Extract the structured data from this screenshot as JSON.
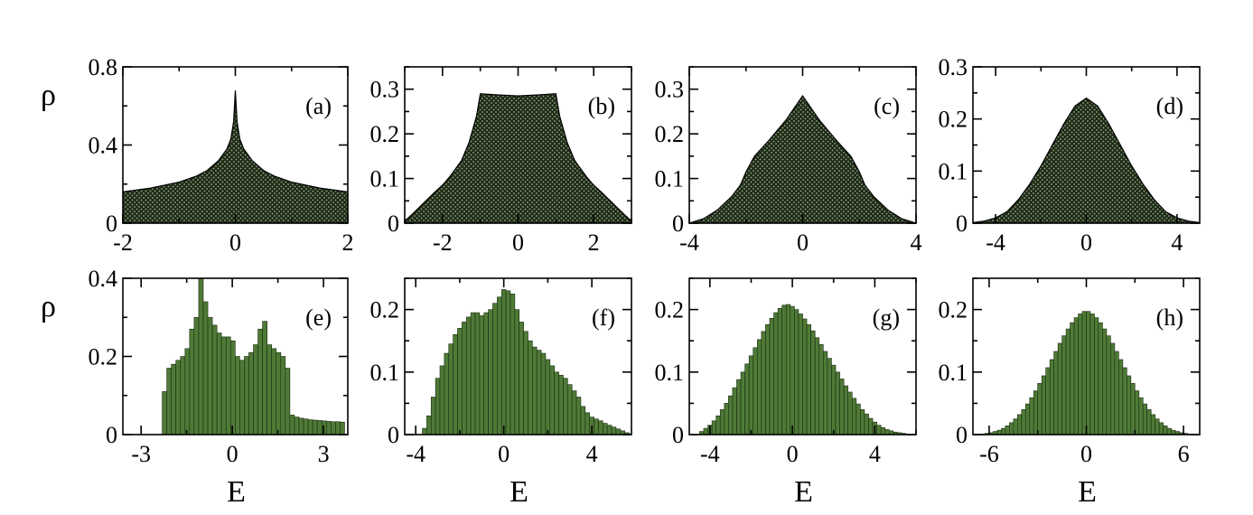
{
  "figure": {
    "colors": {
      "dark_fill": "#1e2c16",
      "dot": "#9aa890",
      "hist_fill": "#4e7a36",
      "hist_edge": "#1a2a10"
    }
  },
  "chart_data": [
    {
      "id": "a",
      "type": "area",
      "panel_label": "(a)",
      "ylabel": "ρ",
      "xlabel": "",
      "xlim": [
        -2,
        2
      ],
      "ylim": [
        0,
        0.8
      ],
      "xticks": [
        -2,
        0,
        2
      ],
      "xtick_labels": [
        "-2",
        "0",
        "2"
      ],
      "yticks": [
        0,
        0.4,
        0.8
      ],
      "ytick_labels": [
        "0",
        "0.4",
        "0.8"
      ],
      "x": [
        -2,
        -1.5,
        -1,
        -0.7,
        -0.5,
        -0.3,
        -0.15,
        -0.08,
        -0.03,
        0,
        0.03,
        0.08,
        0.15,
        0.3,
        0.5,
        0.7,
        1,
        1.5,
        2
      ],
      "y": [
        0.16,
        0.18,
        0.21,
        0.24,
        0.27,
        0.32,
        0.38,
        0.43,
        0.52,
        0.68,
        0.52,
        0.43,
        0.38,
        0.32,
        0.27,
        0.24,
        0.21,
        0.18,
        0.16
      ]
    },
    {
      "id": "b",
      "type": "area",
      "panel_label": "(b)",
      "ylabel": "",
      "xlabel": "",
      "xlim": [
        -3,
        3
      ],
      "ylim": [
        0,
        0.35
      ],
      "xticks": [
        -2,
        0,
        2
      ],
      "xtick_labels": [
        "-2",
        "0",
        "2"
      ],
      "yticks": [
        0,
        0.1,
        0.2,
        0.3
      ],
      "ytick_labels": [
        "0",
        "0.1",
        "0.2",
        "0.3"
      ],
      "x": [
        -3,
        -2.8,
        -2.5,
        -2.2,
        -2,
        -1.8,
        -1.5,
        -1.3,
        -1.1,
        -1,
        -0.5,
        0,
        0.5,
        1,
        1.1,
        1.3,
        1.5,
        1.8,
        2,
        2.2,
        2.5,
        2.8,
        3
      ],
      "y": [
        0.005,
        0.02,
        0.045,
        0.07,
        0.085,
        0.105,
        0.14,
        0.18,
        0.24,
        0.29,
        0.287,
        0.285,
        0.287,
        0.29,
        0.24,
        0.18,
        0.14,
        0.105,
        0.085,
        0.07,
        0.045,
        0.02,
        0.005
      ]
    },
    {
      "id": "c",
      "type": "area",
      "panel_label": "(c)",
      "ylabel": "",
      "xlabel": "",
      "xlim": [
        -4,
        4
      ],
      "ylim": [
        0,
        0.35
      ],
      "xticks": [
        -4,
        0,
        4
      ],
      "xtick_labels": [
        "-4",
        "0",
        "4"
      ],
      "yticks": [
        0,
        0.1,
        0.2,
        0.3
      ],
      "ytick_labels": [
        "0",
        "0.1",
        "0.2",
        "0.3"
      ],
      "x": [
        -4,
        -3.5,
        -3,
        -2.5,
        -2.2,
        -2,
        -1.7,
        -1.2,
        -0.6,
        0,
        0.6,
        1.2,
        1.7,
        2,
        2.2,
        2.5,
        3,
        3.5,
        4
      ],
      "y": [
        0,
        0.01,
        0.03,
        0.06,
        0.085,
        0.115,
        0.15,
        0.185,
        0.23,
        0.285,
        0.23,
        0.185,
        0.15,
        0.115,
        0.085,
        0.06,
        0.03,
        0.01,
        0
      ]
    },
    {
      "id": "d",
      "type": "area",
      "panel_label": "(d)",
      "ylabel": "",
      "xlabel": "",
      "xlim": [
        -5,
        5
      ],
      "ylim": [
        0,
        0.3
      ],
      "xticks": [
        -4,
        0,
        4
      ],
      "xtick_labels": [
        "-4",
        "0",
        "4"
      ],
      "yticks": [
        0,
        0.1,
        0.2,
        0.3
      ],
      "ytick_labels": [
        "0",
        "0.1",
        "0.2",
        "0.3"
      ],
      "x": [
        -5,
        -4.5,
        -4,
        -3.5,
        -3,
        -2.5,
        -2,
        -1.5,
        -1,
        -0.5,
        0,
        0.5,
        1,
        1.5,
        2,
        2.5,
        3,
        3.5,
        4,
        4.5,
        5
      ],
      "y": [
        0.001,
        0.004,
        0.01,
        0.022,
        0.045,
        0.075,
        0.11,
        0.15,
        0.19,
        0.225,
        0.24,
        0.225,
        0.19,
        0.15,
        0.11,
        0.075,
        0.045,
        0.022,
        0.01,
        0.004,
        0.001
      ]
    },
    {
      "id": "e",
      "type": "bar",
      "panel_label": "(e)",
      "ylabel": "ρ",
      "xlabel": "E",
      "xlim": [
        -3.6,
        3.8
      ],
      "ylim": [
        0,
        0.4
      ],
      "xticks": [
        -3,
        0,
        3
      ],
      "xtick_labels": [
        "-3",
        "0",
        "3"
      ],
      "yticks": [
        0,
        0.2,
        0.4
      ],
      "ytick_labels": [
        "0",
        "0.2",
        "0.4"
      ],
      "bin_width": 0.15,
      "x": [
        -2.23,
        -2.08,
        -1.93,
        -1.78,
        -1.63,
        -1.48,
        -1.33,
        -1.18,
        -1.03,
        -0.88,
        -0.73,
        -0.58,
        -0.43,
        -0.28,
        -0.13,
        0.02,
        0.17,
        0.32,
        0.47,
        0.62,
        0.77,
        0.92,
        1.07,
        1.22,
        1.37,
        1.52,
        1.67,
        1.82,
        1.97,
        2.12,
        2.27,
        2.42,
        2.57,
        2.72,
        2.87,
        3.02,
        3.17,
        3.32,
        3.47,
        3.62
      ],
      "y": [
        0.11,
        0.17,
        0.18,
        0.19,
        0.2,
        0.22,
        0.27,
        0.3,
        0.4,
        0.34,
        0.3,
        0.28,
        0.26,
        0.25,
        0.25,
        0.24,
        0.2,
        0.19,
        0.2,
        0.21,
        0.23,
        0.27,
        0.29,
        0.23,
        0.22,
        0.21,
        0.2,
        0.17,
        0.05,
        0.045,
        0.042,
        0.04,
        0.038,
        0.037,
        0.036,
        0.035,
        0.034,
        0.033,
        0.033,
        0.032
      ]
    },
    {
      "id": "f",
      "type": "bar",
      "panel_label": "(f)",
      "ylabel": "",
      "xlabel": "E",
      "xlim": [
        -4.5,
        5.8
      ],
      "ylim": [
        0,
        0.25
      ],
      "xticks": [
        -4,
        0,
        4
      ],
      "xtick_labels": [
        "-4",
        "0",
        "4"
      ],
      "yticks": [
        0,
        0.1,
        0.2
      ],
      "ytick_labels": [
        "0",
        "0.1",
        "0.2"
      ],
      "bin_width": 0.2,
      "x": [
        -3.6,
        -3.4,
        -3.2,
        -3.0,
        -2.8,
        -2.6,
        -2.4,
        -2.2,
        -2.0,
        -1.8,
        -1.6,
        -1.4,
        -1.2,
        -1.0,
        -0.8,
        -0.6,
        -0.4,
        -0.2,
        0.0,
        0.2,
        0.4,
        0.6,
        0.8,
        1.0,
        1.2,
        1.4,
        1.6,
        1.8,
        2.0,
        2.2,
        2.4,
        2.6,
        2.8,
        3.0,
        3.2,
        3.4,
        3.6,
        3.8,
        4.0,
        4.2,
        4.4,
        4.6,
        4.8,
        5.0,
        5.2,
        5.4,
        5.6
      ],
      "y": [
        0.01,
        0.03,
        0.06,
        0.09,
        0.11,
        0.13,
        0.145,
        0.16,
        0.17,
        0.18,
        0.188,
        0.195,
        0.195,
        0.19,
        0.195,
        0.2,
        0.21,
        0.22,
        0.232,
        0.23,
        0.225,
        0.2,
        0.18,
        0.165,
        0.15,
        0.14,
        0.135,
        0.13,
        0.12,
        0.11,
        0.1,
        0.095,
        0.09,
        0.08,
        0.07,
        0.06,
        0.045,
        0.035,
        0.028,
        0.025,
        0.022,
        0.018,
        0.015,
        0.012,
        0.009,
        0.006,
        0.003
      ]
    },
    {
      "id": "g",
      "type": "bar",
      "panel_label": "(g)",
      "ylabel": "",
      "xlabel": "E",
      "xlim": [
        -5,
        6
      ],
      "ylim": [
        0,
        0.25
      ],
      "xticks": [
        -4,
        0,
        4
      ],
      "xtick_labels": [
        "-4",
        "0",
        "4"
      ],
      "yticks": [
        0,
        0.1,
        0.2
      ],
      "ytick_labels": [
        "0",
        "0.1",
        "0.2"
      ],
      "bin_width": 0.2,
      "x": [
        -4.4,
        -4.2,
        -4.0,
        -3.8,
        -3.6,
        -3.4,
        -3.2,
        -3.0,
        -2.8,
        -2.6,
        -2.4,
        -2.2,
        -2.0,
        -1.8,
        -1.6,
        -1.4,
        -1.2,
        -1.0,
        -0.8,
        -0.6,
        -0.4,
        -0.2,
        0.0,
        0.2,
        0.4,
        0.6,
        0.8,
        1.0,
        1.2,
        1.4,
        1.6,
        1.8,
        2.0,
        2.2,
        2.4,
        2.6,
        2.8,
        3.0,
        3.2,
        3.4,
        3.6,
        3.8,
        4.0,
        4.2,
        4.4,
        4.6,
        4.8,
        5.0,
        5.2,
        5.4,
        5.6
      ],
      "y": [
        0.005,
        0.01,
        0.015,
        0.022,
        0.03,
        0.04,
        0.05,
        0.062,
        0.075,
        0.088,
        0.1,
        0.113,
        0.126,
        0.139,
        0.152,
        0.165,
        0.176,
        0.186,
        0.195,
        0.202,
        0.207,
        0.208,
        0.205,
        0.2,
        0.193,
        0.185,
        0.176,
        0.166,
        0.155,
        0.144,
        0.133,
        0.122,
        0.111,
        0.1,
        0.089,
        0.078,
        0.068,
        0.058,
        0.049,
        0.04,
        0.033,
        0.026,
        0.02,
        0.015,
        0.011,
        0.008,
        0.006,
        0.004,
        0.003,
        0.002,
        0.001
      ]
    },
    {
      "id": "h",
      "type": "bar",
      "panel_label": "(h)",
      "ylabel": "",
      "xlabel": "E",
      "xlim": [
        -7,
        7
      ],
      "ylim": [
        0,
        0.25
      ],
      "xticks": [
        -6,
        0,
        6
      ],
      "xtick_labels": [
        "-6",
        "0",
        "6"
      ],
      "bin_width": 0.25,
      "yticks": [
        0,
        0.1,
        0.2
      ],
      "ytick_labels": [
        "0",
        "0.1",
        "0.2"
      ],
      "x": [
        -6.375,
        -6.125,
        -5.875,
        -5.625,
        -5.375,
        -5.125,
        -4.875,
        -4.625,
        -4.375,
        -4.125,
        -3.875,
        -3.625,
        -3.375,
        -3.125,
        -2.875,
        -2.625,
        -2.375,
        -2.125,
        -1.875,
        -1.625,
        -1.375,
        -1.125,
        -0.875,
        -0.625,
        -0.375,
        -0.125,
        0.125,
        0.375,
        0.625,
        0.875,
        1.125,
        1.375,
        1.625,
        1.875,
        2.125,
        2.375,
        2.625,
        2.875,
        3.125,
        3.375,
        3.625,
        3.875,
        4.125,
        4.375,
        4.625,
        4.875,
        5.125,
        5.375,
        5.625,
        5.875,
        6.125,
        6.375
      ],
      "y": [
        0.001,
        0.002,
        0.003,
        0.005,
        0.007,
        0.01,
        0.014,
        0.019,
        0.025,
        0.032,
        0.04,
        0.049,
        0.059,
        0.07,
        0.082,
        0.094,
        0.107,
        0.12,
        0.133,
        0.146,
        0.158,
        0.169,
        0.179,
        0.187,
        0.193,
        0.197,
        0.197,
        0.193,
        0.187,
        0.179,
        0.169,
        0.158,
        0.146,
        0.133,
        0.12,
        0.107,
        0.094,
        0.082,
        0.07,
        0.059,
        0.049,
        0.04,
        0.032,
        0.025,
        0.019,
        0.014,
        0.01,
        0.007,
        0.005,
        0.003,
        0.002,
        0.001
      ]
    }
  ]
}
